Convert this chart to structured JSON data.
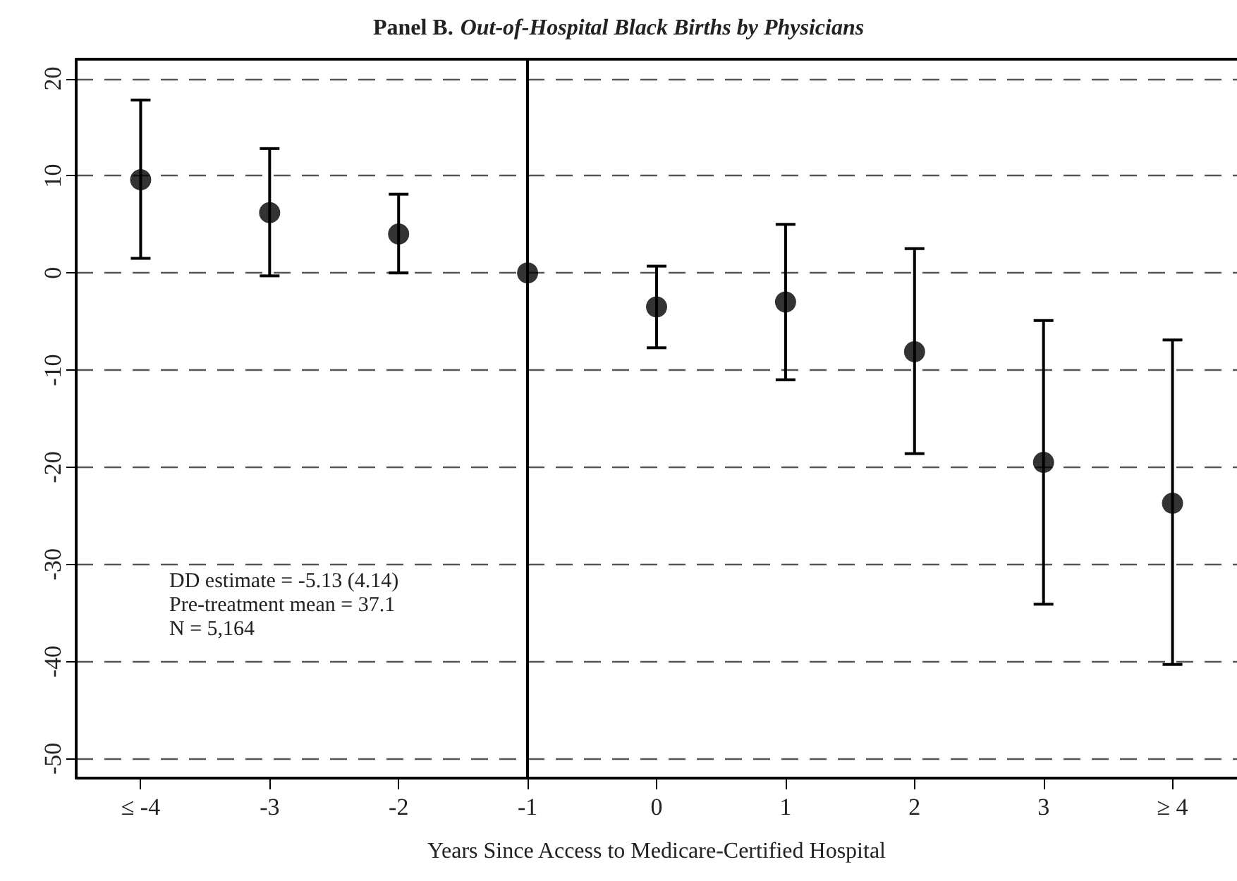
{
  "chart_data": {
    "type": "scatter",
    "title": "Panel B. Out-of-Hospital Black Births by Physicians",
    "xlabel": "Years Since Access to Medicare-Certified Hospital",
    "categories": [
      "≤ -4",
      "-3",
      "-2",
      "-1",
      "0",
      "1",
      "2",
      "3",
      "≥ 4"
    ],
    "series": [
      {
        "color": "#000000",
        "values": [
          9.6,
          6.2,
          4.0,
          0,
          -3.5,
          -3.0,
          -8.1,
          -19.5,
          -23.7
        ],
        "errors": [
          [
            1.5,
            17.8
          ],
          [
            -0.3,
            12.8
          ],
          [
            0,
            8.1
          ],
          null,
          [
            -7.7,
            0.7
          ],
          [
            -11.0,
            5.0
          ],
          [
            -18.6,
            2.5
          ],
          [
            -34.1,
            -4.9
          ],
          [
            -40.3,
            -6.9
          ]
        ]
      }
    ],
    "ylim": [
      -52,
      22
    ],
    "yticks": [
      -50,
      -40,
      -30,
      -20,
      -10,
      0,
      10,
      20
    ],
    "grid": "y",
    "marker": "circle",
    "ref_lines": [
      {
        "axis": "x",
        "value": "-1",
        "color": "#000000",
        "line_style": "solid"
      }
    ],
    "annotations": [
      "DD estimate = -5.13 (4.14)",
      "Pre-treatment mean = 37.1",
      "N = 5,164"
    ]
  }
}
